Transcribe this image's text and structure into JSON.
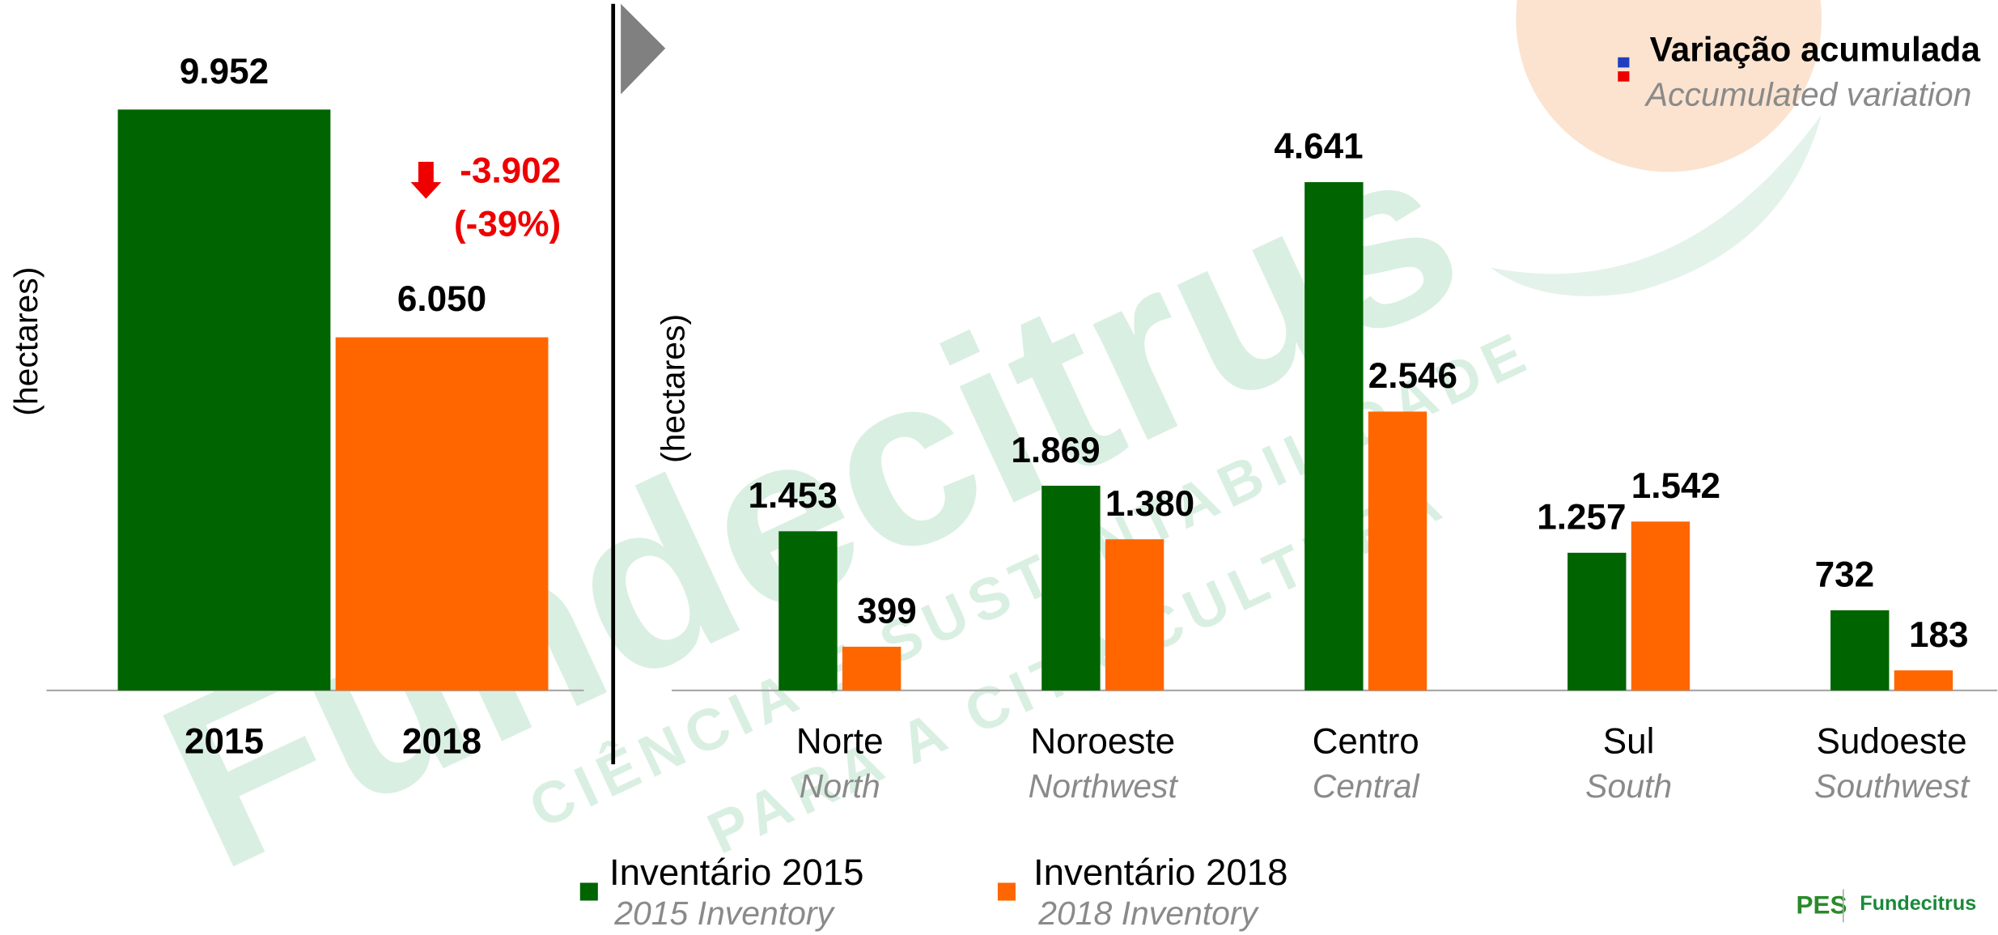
{
  "chart_data": [
    {
      "type": "bar",
      "ylabel": "(hectares)",
      "categories": [
        "2015",
        "2018"
      ],
      "values": [
        9952,
        6050
      ],
      "value_labels": [
        "9.952",
        "6.050"
      ],
      "colors": [
        "#006400",
        "#ff6600"
      ],
      "annotation": {
        "change": "-3.902",
        "percent": "(-39%)"
      }
    },
    {
      "type": "grouped_bar",
      "ylabel": "(hectares)",
      "categories": [
        "Norte",
        "Noroeste",
        "Centro",
        "Sul",
        "Sudoeste"
      ],
      "categories_en": [
        "North",
        "Northwest",
        "Central",
        "South",
        "Southwest"
      ],
      "series": [
        {
          "name": "Inventário 2015",
          "name_en": "2015 Inventory",
          "color": "#006400",
          "values": [
            1453,
            1869,
            4641,
            1257,
            732
          ],
          "value_labels": [
            "1.453",
            "1.869",
            "4.641",
            "1.257",
            "732"
          ]
        },
        {
          "name": "Inventário 2018",
          "name_en": "2018 Inventory",
          "color": "#ff6600",
          "values": [
            399,
            1380,
            2546,
            1542,
            183
          ],
          "value_labels": [
            "399",
            "1.380",
            "2.546",
            "1.542",
            "183"
          ]
        }
      ],
      "legend": {
        "title": "Variação acumulada",
        "subtitle": "Accumulated variation",
        "position": "upper right"
      }
    }
  ],
  "watermark": {
    "brand": "Fundecitrus",
    "line1": "CIÊNCIA E SUSTENTABILIDADE",
    "line2": "PARA A CITRICULTURA"
  },
  "logos": {
    "pes": "PES",
    "fundecitrus": "Fundecitrus"
  }
}
